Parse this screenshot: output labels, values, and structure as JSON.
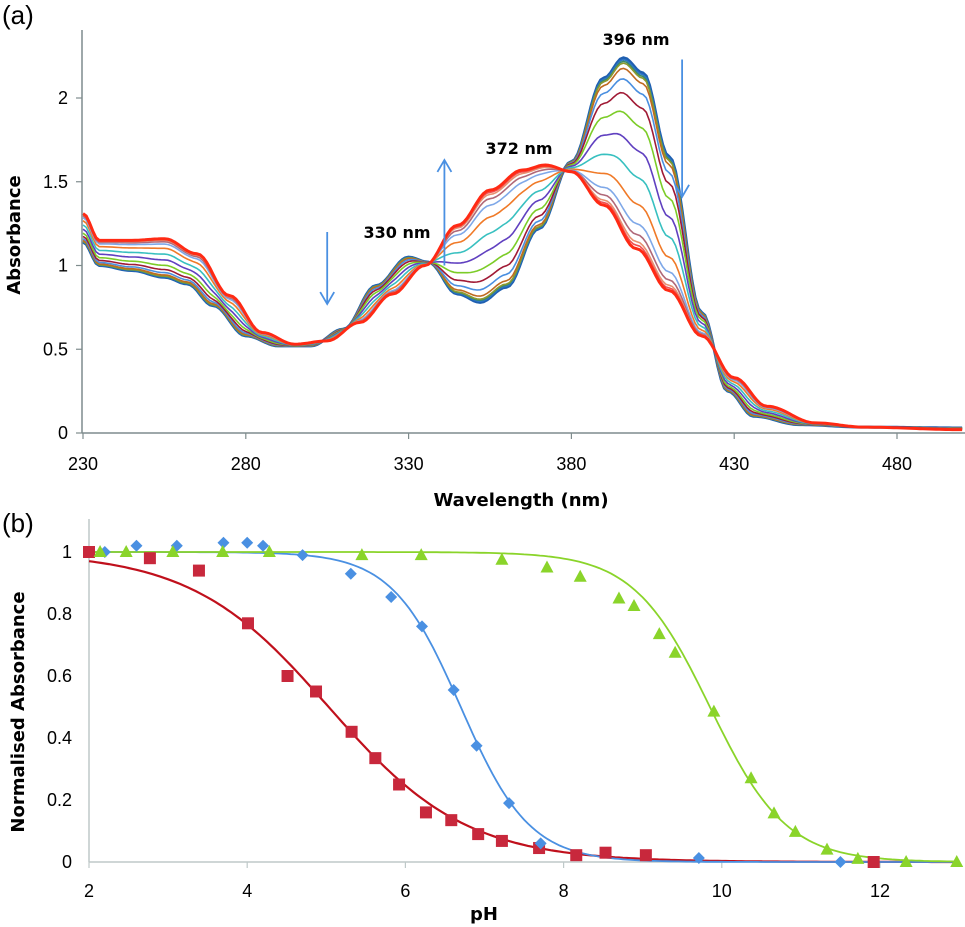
{
  "chart_data": [
    {
      "panel": "(a)",
      "type": "line",
      "title": "",
      "xlabel": "Wavelength (nm)",
      "ylabel": "Absorbance",
      "xlim": [
        230,
        500
      ],
      "ylim": [
        0,
        2.4
      ],
      "xticks": [
        230,
        280,
        330,
        380,
        430,
        480
      ],
      "yticks": [
        0,
        0.5,
        1,
        1.5,
        2
      ],
      "ytick_labels": [
        "0",
        "0.5",
        "1",
        "1.5",
        "2"
      ],
      "grid": false,
      "legend": "none",
      "annotations": [
        {
          "text": "330 nm",
          "x": 330,
          "y": 1.17
        },
        {
          "text": "372 nm",
          "x": 372,
          "y": 1.68
        },
        {
          "text": "396 nm",
          "x": 396,
          "y": 2.3
        }
      ],
      "arrows": [
        {
          "x": 305,
          "y_from": 1.2,
          "y_to": 0.77,
          "direction": "down",
          "color": "#4a90e2"
        },
        {
          "x": 341,
          "y_from": 1.0,
          "y_to": 1.63,
          "direction": "up",
          "color": "#4a90e2"
        },
        {
          "x": 414,
          "y_from": 2.23,
          "y_to": 1.41,
          "direction": "down",
          "color": "#4a90e2"
        }
      ],
      "isosbestic_points_nm": [
        297,
        337,
        378,
        418
      ],
      "spectrum_initial": {
        "wavelength": [
          230,
          235,
          245,
          255,
          262,
          270,
          280,
          290,
          300,
          310,
          320,
          330,
          336,
          345,
          352,
          360,
          370,
          380,
          390,
          396,
          402,
          410,
          420,
          428,
          436,
          450,
          470,
          500
        ],
        "absorbance": [
          1.14,
          1.0,
          0.97,
          0.93,
          0.89,
          0.76,
          0.58,
          0.52,
          0.52,
          0.62,
          0.88,
          1.05,
          1.02,
          0.83,
          0.78,
          0.87,
          1.22,
          1.62,
          2.12,
          2.24,
          2.15,
          1.65,
          0.72,
          0.25,
          0.1,
          0.05,
          0.035,
          0.03
        ]
      },
      "spectrum_final": {
        "wavelength": [
          230,
          235,
          245,
          255,
          265,
          275,
          285,
          295,
          305,
          315,
          325,
          335,
          345,
          355,
          365,
          372,
          380,
          390,
          400,
          410,
          420,
          430,
          440,
          455,
          470,
          500
        ],
        "absorbance": [
          1.31,
          1.15,
          1.15,
          1.16,
          1.07,
          0.82,
          0.6,
          0.53,
          0.55,
          0.66,
          0.83,
          1.0,
          1.24,
          1.45,
          1.57,
          1.6,
          1.56,
          1.36,
          1.1,
          0.85,
          0.58,
          0.33,
          0.16,
          0.06,
          0.035,
          0.02
        ]
      },
      "series": [
        {
          "name": "spectrum-1",
          "fraction_converted": 0.0,
          "color": "#1f5fb0"
        },
        {
          "name": "spectrum-2",
          "fraction_converted": 0.01,
          "color": "#2e75c9"
        },
        {
          "name": "spectrum-3",
          "fraction_converted": 0.02,
          "color": "#3a8a6a"
        },
        {
          "name": "spectrum-4",
          "fraction_converted": 0.03,
          "color": "#8a9a30"
        },
        {
          "name": "spectrum-5",
          "fraction_converted": 0.06,
          "color": "#c06a20"
        },
        {
          "name": "spectrum-6",
          "fraction_converted": 0.12,
          "color": "#4a8fe0"
        },
        {
          "name": "spectrum-7",
          "fraction_converted": 0.2,
          "color": "#a01a35"
        },
        {
          "name": "spectrum-8",
          "fraction_converted": 0.31,
          "color": "#7ccc28"
        },
        {
          "name": "spectrum-9",
          "fraction_converted": 0.45,
          "color": "#6040c0"
        },
        {
          "name": "spectrum-10",
          "fraction_converted": 0.6,
          "color": "#38c0c0"
        },
        {
          "name": "spectrum-11",
          "fraction_converted": 0.75,
          "color": "#f07a28"
        },
        {
          "name": "spectrum-12",
          "fraction_converted": 0.86,
          "color": "#7fa8e8"
        },
        {
          "name": "spectrum-13",
          "fraction_converted": 0.92,
          "color": "#b06878"
        },
        {
          "name": "spectrum-14",
          "fraction_converted": 0.96,
          "color": "#e89070"
        },
        {
          "name": "spectrum-15",
          "fraction_converted": 0.98,
          "color": "#f05050"
        },
        {
          "name": "spectrum-16",
          "fraction_converted": 1.0,
          "color": "#ff2a14"
        }
      ]
    },
    {
      "panel": "(b)",
      "type": "scatter",
      "title": "",
      "xlabel": "pH",
      "ylabel": "Normalised Absorbance",
      "xlim": [
        2,
        13
      ],
      "ylim": [
        0,
        1.1
      ],
      "xticks": [
        2,
        4,
        6,
        8,
        10,
        12
      ],
      "yticks": [
        0,
        0.2,
        0.4,
        0.6,
        0.8,
        1
      ],
      "ytick_labels": [
        "0",
        "0.2",
        "0.4",
        "0.6",
        "0.8",
        "1"
      ],
      "grid": false,
      "legend": "none",
      "series": [
        {
          "name": "red-squares",
          "marker": "square",
          "color": "#c8283c",
          "fit_color": "#c0101c",
          "fit": {
            "model": "sigmoid",
            "pKa": 5.03,
            "slope": 0.5
          },
          "x": [
            2.0,
            2.77,
            3.39,
            4.01,
            4.51,
            4.87,
            5.32,
            5.62,
            5.92,
            6.26,
            6.58,
            6.92,
            7.22,
            7.69,
            8.16,
            8.53,
            9.04,
            11.92
          ],
          "y": [
            1.0,
            0.98,
            0.94,
            0.77,
            0.6,
            0.55,
            0.42,
            0.335,
            0.25,
            0.16,
            0.135,
            0.09,
            0.068,
            0.045,
            0.022,
            0.03,
            0.022,
            0.0
          ]
        },
        {
          "name": "blue-diamonds",
          "marker": "diamond",
          "color": "#4a90e2",
          "fit_color": "#4a90e2",
          "fit": {
            "model": "sigmoid",
            "pKa": 6.7,
            "slope": 1.0
          },
          "x": [
            2.2,
            2.6,
            3.11,
            3.7,
            4.0,
            4.2,
            4.7,
            5.31,
            5.82,
            6.21,
            6.61,
            6.9,
            7.31,
            7.71,
            9.71,
            11.5
          ],
          "y": [
            1.0,
            1.02,
            1.02,
            1.03,
            1.03,
            1.02,
            0.99,
            0.93,
            0.855,
            0.76,
            0.555,
            0.375,
            0.19,
            0.06,
            0.013,
            0.0
          ]
        },
        {
          "name": "green-triangles",
          "marker": "triangle",
          "color": "#8ad42a",
          "fit_color": "#8ad42a",
          "fit": {
            "model": "sigmoid",
            "pKa": 9.85,
            "slope": 0.9
          },
          "x": [
            2.14,
            2.47,
            3.06,
            3.69,
            4.28,
            5.45,
            6.2,
            7.22,
            7.79,
            8.21,
            8.7,
            8.89,
            9.21,
            9.41,
            9.9,
            10.37,
            10.66,
            10.93,
            11.33,
            11.72,
            12.33,
            12.97
          ],
          "y": [
            1.0,
            1.0,
            1.0,
            1.0,
            1.0,
            0.99,
            0.99,
            0.975,
            0.95,
            0.92,
            0.85,
            0.826,
            0.735,
            0.675,
            0.485,
            0.27,
            0.157,
            0.097,
            0.04,
            0.01,
            0.0,
            0.0
          ]
        }
      ]
    }
  ]
}
